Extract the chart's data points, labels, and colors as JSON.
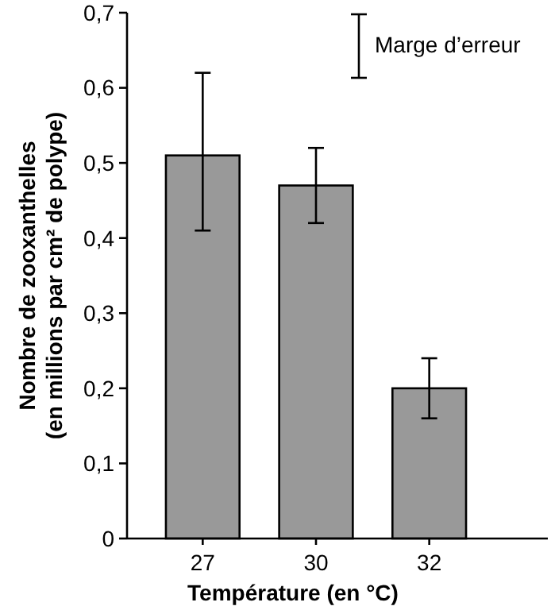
{
  "chart_data": {
    "type": "bar",
    "xlabel": "Température (en °C)",
    "ylabel": "Nombre de zooxanthelles\n(en millions par cm² de polype)",
    "categories": [
      "27",
      "30",
      "32"
    ],
    "values": [
      0.51,
      0.47,
      0.2
    ],
    "errors": [
      [
        0.41,
        0.62
      ],
      [
        0.42,
        0.52
      ],
      [
        0.16,
        0.24
      ]
    ],
    "color": "#999999",
    "ylim": [
      0,
      0.7
    ],
    "yticks": [
      0,
      {
        "value": 0.1,
        "label": "0,1"
      },
      {
        "value": 0.2,
        "label": "0,2"
      },
      {
        "value": 0.3,
        "label": "0,3"
      },
      {
        "value": 0.4,
        "label": "0,4"
      },
      {
        "value": 0.5,
        "label": "0,5"
      },
      {
        "value": 0.6,
        "label": "0,6"
      },
      {
        "value": 0.7,
        "label": "0,7"
      }
    ],
    "annotations": [
      "Marge d’erreur"
    ],
    "grid": false
  }
}
